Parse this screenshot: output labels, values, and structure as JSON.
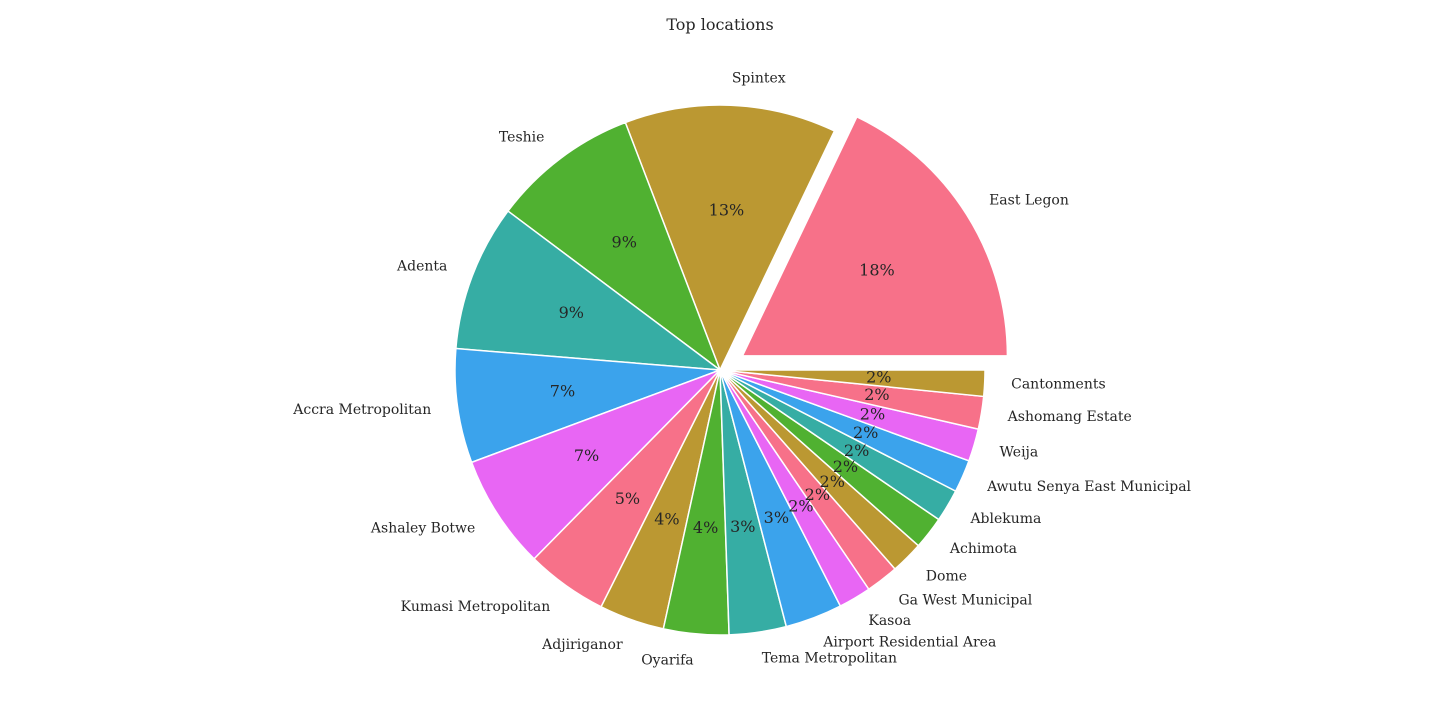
{
  "chart_data": {
    "type": "pie",
    "title": "Top locations",
    "slices": [
      {
        "label": "East Legon",
        "value": 18,
        "pct_label": "18%",
        "color": "#f77189",
        "exploded": true
      },
      {
        "label": "Spintex",
        "value": 13,
        "pct_label": "13%",
        "color": "#bb9832",
        "exploded": false
      },
      {
        "label": "Teshie",
        "value": 9,
        "pct_label": "9%",
        "color": "#50b131",
        "exploded": false
      },
      {
        "label": "Adenta",
        "value": 9,
        "pct_label": "9%",
        "color": "#36ada4",
        "exploded": false
      },
      {
        "label": "Accra Metropolitan",
        "value": 7,
        "pct_label": "7%",
        "color": "#3ba3ec",
        "exploded": false
      },
      {
        "label": "Ashaley Botwe",
        "value": 7,
        "pct_label": "7%",
        "color": "#e866f4",
        "exploded": false
      },
      {
        "label": "Kumasi Metropolitan",
        "value": 5,
        "pct_label": "5%",
        "color": "#f77189",
        "exploded": false
      },
      {
        "label": "Adjiriganor",
        "value": 4,
        "pct_label": "4%",
        "color": "#bb9832",
        "exploded": false
      },
      {
        "label": "Oyarifa",
        "value": 4,
        "pct_label": "4%",
        "color": "#50b131",
        "exploded": false
      },
      {
        "label": "Tema Metropolitan",
        "value": 3.5,
        "pct_label": "3%",
        "color": "#36ada4",
        "exploded": false
      },
      {
        "label": "Airport Residential Area",
        "value": 3.5,
        "pct_label": "3%",
        "color": "#3ba3ec",
        "exploded": false
      },
      {
        "label": "Kasoa",
        "value": 2,
        "pct_label": "2%",
        "color": "#e866f4",
        "exploded": false
      },
      {
        "label": "Ga West Municipal",
        "value": 2,
        "pct_label": "2%",
        "color": "#f77189",
        "exploded": false
      },
      {
        "label": "Dome",
        "value": 2,
        "pct_label": "2%",
        "color": "#bb9832",
        "exploded": false
      },
      {
        "label": "Achimota",
        "value": 2,
        "pct_label": "2%",
        "color": "#50b131",
        "exploded": false
      },
      {
        "label": "Ablekuma",
        "value": 2,
        "pct_label": "2%",
        "color": "#36ada4",
        "exploded": false
      },
      {
        "label": "Awutu Senya East Municipal",
        "value": 2,
        "pct_label": "2%",
        "color": "#3ba3ec",
        "exploded": false
      },
      {
        "label": "Weija",
        "value": 2,
        "pct_label": "2%",
        "color": "#e866f4",
        "exploded": false
      },
      {
        "label": "Ashomang Estate",
        "value": 2,
        "pct_label": "2%",
        "color": "#f77189",
        "exploded": false
      },
      {
        "label": "Cantonments",
        "value": 1.6,
        "pct_label": "2%",
        "color": "#bb9832",
        "exploded": false
      }
    ],
    "start_angle_deg": 0,
    "direction": "counterclockwise",
    "wedge_edge_color": "#ffffff"
  }
}
